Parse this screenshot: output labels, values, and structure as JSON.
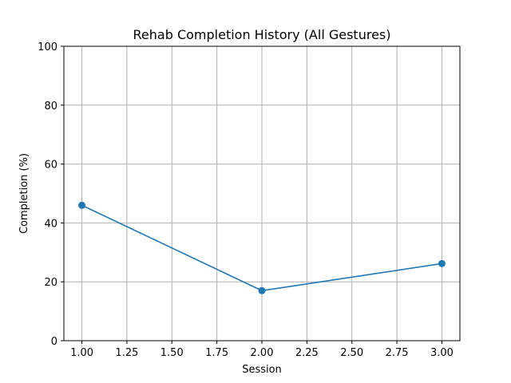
{
  "chart_data": {
    "type": "line",
    "title": "Rehab Completion History (All Gestures)",
    "xlabel": "Session",
    "ylabel": "Completion (%)",
    "xlim": [
      0.9,
      3.1
    ],
    "ylim": [
      0,
      100
    ],
    "xticks": [
      "1.00",
      "1.25",
      "1.50",
      "1.75",
      "2.00",
      "2.25",
      "2.50",
      "2.75",
      "3.00"
    ],
    "yticks": [
      "0",
      "20",
      "40",
      "60",
      "80",
      "100"
    ],
    "grid": true,
    "series": [
      {
        "x": [
          1,
          2,
          3
        ],
        "y": [
          46,
          17,
          26.2
        ],
        "color": "#1f77b4",
        "marker": "circle"
      }
    ]
  }
}
